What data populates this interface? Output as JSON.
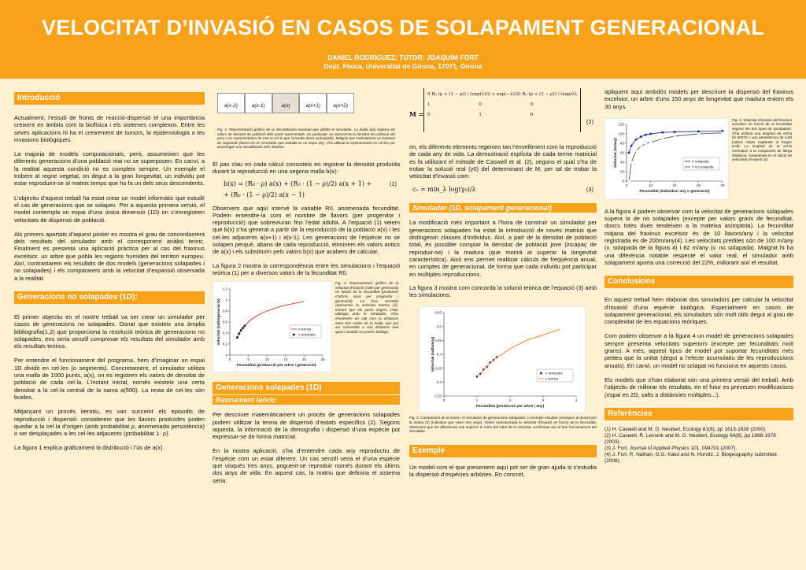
{
  "header": {
    "title": "VELOCITAT D’INVASIÓ EN CASOS DE SOLAPAMENT GENERACIONAL",
    "authors": "DANIEL RODRÍGUEZ; TUTOR: JOAQUIM FORT",
    "affiliation": "Dept. Física, Universitat de Girona, 17071, Girona"
  },
  "col1": {
    "intro_title": "Introducció",
    "intro_p1": "Actualment, l’estudi de fronts de reacció-dispersió té una importància creixent en àmbits com la biofísica i els sistemes complexos. Entre les seves aplicacions hi ha el creixement de tumors, la epidemiologia o les invasions biològiques.",
    "intro_p2": "La majoria de models computacionals, però, assumeixen que les diferents generacions d’una població mai no se superposen. En canvi, a la realitat aquesta condició no es compleix sempre. Un exemple el trobem al regne vegetal, on degut a la gran longevitat, un individu pot estar reproduint-se al mateix temps que ho fa un dels seus descendents.",
    "intro_p3": "L’objectiu d’aquest treball ha estat crear un model informàtic que estudiï el cas de generacions que se solapen. Per a aquesta primera versió, el model contempla un espai d’una única dimensió (1D) on s’enregistren velocitats de dispersió de població.",
    "intro_p4": "Als primers apartats d’aquest pòster es mostra el grau de concordament dels resultats del simulador amb el corresponent anàlisi teòric. Finalment es presenta una aplicació pràctica per al cas del fraxinus excelsior, un arbre que pobla les regions humides del territori europeu. Així, contrastarem els resultats de dos models (generacions solapades i no solapades) i els compararem amb la velocitat d’expansió observada a la realitat.",
    "nonoverlap_title": "Generacions no solapades (1D):",
    "no_p1": "El primer objectiu en el nostre treball va ser crear un simulador per casos de generacions no solapades. Donat que existeix una àmplia bibliografia(1,2) que proporciona la resolució teòrica de generacions no solapades, ens seria senzill comprovar els resultats del simulador amb els resultats teòrics.",
    "no_p2": "Per entendre el funcionament del programa, hem d’imaginar un espai 1D dividit en cel·les (o segments). Concretament, el simulador utilitza una malla de 1000 punts, a(x), on es registren els valors de densitat de població de cada cel·la. L’instant inicial, només existeix una certa densitat a la cel·la central de la xarxa a(500). La resta de cel·les són buides.",
    "no_p3": "Mitjançant un procés iteratiu, es van succeint els episodis de reproducció i dispersió: considerem que les llavors produïdes poden quedar a la cel·la d’origen (amb probabilitat ρ, anomenada persistència) o ser desplaçades a les cel·les adjacents (probabilitat 1- ρ).",
    "no_p4": "La figura 1 explica gràficament la distribució i l’ús de a(x)."
  },
  "col2": {
    "lattice_labels": [
      "a(x-2)",
      "a(x-1)",
      "a(x)",
      "a(x+1)",
      "a(x+2)"
    ],
    "fig1_caption": "Fig. 1: Representació gràfica de la discretització espacial que utilitza el simulador. La malla a(x) registra els valors de densitat de població dels punts representats. En particular, es representa la densitat de població del punt x és representativa de tota la cel·la que l’envolta (àrea ombrejada). Malgrat que estrictament es tractaria de segments (doncs és un simulador que treballa en un espai 1D), s’ha utilitzat la representació en cel·les per aconseguir una visualització més intuïtiva.",
    "p_eq1_intro": "El pas clau en cada càlcul consisteix en registrar la densitat produïda durant la reproducció en una segona malla b(x):",
    "eq1_line1": "b(x) = (R₀ · ρ) a(x) + (R₀ · (1 − ρ)/2) a(x + 1) +",
    "eq1_line2": "+ (R₀ · (1 − ρ)/2) a(x − 1)",
    "eq1_num": "(1)",
    "p_eq1_after": "Observem que aquí intervé la variable R0, anomenada fecunditat. Podem entendre-la com el nombre de llavors (per progenitor i reproducció) que sobreviuran fins l’edat adulta. A l’equació (1) veiem que b(x) s’ha generat a partir de la reproducció de la població a(x) i les cel·les adjacents a(x+1) i a(x-1). Les generacions de l’espècie no se solapen perquè, abans de cada reproducció, eliminem els valors antics de a(x) i els substituïm pels valors b(x) que acabem de calcular.",
    "p_fig2_intro": "La figura 2 mostra la correspondència entre les simulacions i l’equació teòrica (1) per a diversos valors de la fecunditat R0.",
    "fig2_caption": "Fig. 2: Representació gràfica de la velocitat d’invasió (salts per generació) en funció de la fecunditat (producció d’arbres nous per progenitor i generació). La línia vermella representa la velocitat teòrica (2), mentre que els punts negres s’han obtingut amb el simulador. S’ha d’entendre un salt com la distància entre dos nodes de la malla, que pot ser convertida a una distància real quan s’analitzi un procés biològic.",
    "overlap_title": "Generacions solapades (1D)",
    "theory_sub": "Raonament teòric",
    "ov_p1": "Per descriure matemàticament un procés de generacions solapades podem utilitzar la teoria de dispersió d’estats específics (2). Segons aquesta, la informació de la demografia i dispersió d’una espècie pot expressar-se de forma matricial.",
    "ov_p2": "En la nostra aplicació, s’ha d’entendre cada any reproductiu de l’espècie com un estat diferent. Un cas senzill seria el d’una espècie que visqués tres anys, poguent-se reproduir només durant els últims dos anys de vida. En aquest cas, la matriu que definiria el sistema seria:"
  },
  "fig2": {
    "xlabel": "Fecunditat (producció per arbre i generació)",
    "ylabel": "Velocitat (salts/generació)",
    "legend": [
      "v teòrica",
      "v simulador"
    ],
    "yticks": [
      "0",
      "0,2",
      "0,4",
      "0,6",
      "0,8",
      "1",
      "1,2"
    ],
    "xticks": [
      "0",
      "5",
      "10",
      "15",
      "20",
      "25"
    ]
  },
  "col3": {
    "matrix_row1": "0   R₀ (ρ + (1 − ρ)) / (exp(λ)/2 + exp(−λ)/2)     R₀ (ρ + (1 − ρ)) / (exp(λ)/2 + exp(−λ)/2)",
    "matrix_row2": "1   0   0",
    "matrix_row3": "0   1   0",
    "matrix_label": "M =",
    "eq2_num": "(2)",
    "p_after_matrix": "on, els diferents elements regeixen tan l’envelliment com la reproducció de cada any de vida. La demostració explícita de cada terme matricial es fa utilitzant el mètode de Caswell et al. (2), segons el qual s’ha de trobar la solució real (γ0) del determinant de M, per tal de trobar la velocitat d’invasió com:",
    "eq3": "cᵥ = min_λ log(γ₀)/λ",
    "eq3_num": "(3)",
    "sim_sub": "Simulador (1D, solapament generacional)",
    "sim_p1": "La modificació més important a l’hora de construir un simulador per generacions solapades ha estat la introducció de noves matrius que distingeixin classes d’individus. Així, a part de la densitat de població total, és possible comptar la densitat de població jove (incapaç de reproduir-se) i la madura (que morirà al superar la longevitat característica). Això ens permet realitzar càlculs de freqüència anual, en comptes de generacional, de forma que cada individu pot participar en múltiples reproduccions.",
    "sim_p2": "La figura 3 mostra com concorda la solució teòrica de l’equació (3) amb les simulacions.",
    "fig3_caption": "Fig. 3: Comparació de la teoria i el simulador de generacions solapades. L’exemple estudiat correspon al descrit per la matriu (2) (individus que viuen tres anys). Veiem representada la velocitat d’invasió en funció de la fecunditat. Observem que les diferències mai superen el 0.5% del valor de la velocitat, confirmant així el bon funcionament del simulador.",
    "example_title": "Exemple",
    "ex_p1": "Un model com el que presentem aquí pot ser de gran ajuda si s’estudia la dispersió d’espècies arbòries. En concret,"
  },
  "fig3": {
    "xlabel": "Fecunditat (producció per arbre i any)",
    "ylabel": "Velocitat (salts/any)",
    "legend": [
      "v simulador",
      "v teòrica"
    ],
    "yticks": [
      "0,25",
      "0,3",
      "0,35",
      "0,4",
      "0,45",
      "0,5",
      "0,55"
    ],
    "xticks": [
      "0",
      "1",
      "2",
      "3",
      "4"
    ]
  },
  "col4": {
    "p_top": "apliquem aquí ambdós models per descriure la dispersió del fraxinus excelsior, un arbre d’uns 150 anys de longevitat que madura entorn els 30 anys.",
    "fig4_caption": "Fig. 4: Velocitat d’invasió del fraxinus excelsior en funció de la fecunditat segons els dos tipus de simuladors. S’ha utilitzat una longitud de cel·la de 3067m i una persistència de 0,93 (valors mitjos registrats al Regne Unit). La longitud de la cel·la correspon a la component de llarga distància, fonamental en el càlcul de velocitats d’invasió (3).",
    "p_fig4": "A la figura 4 podem observar com la velocitat de generacions solapades supera la de no solapades (excepte per valors grans de fecunditat, doncs totes dues tendeixen a la mateixa asímptota). La fecunditat mitjana del fraxinus excelsior és de 10 llavors/any i la velocitat registrada és de 200m/any(4). Les velocitats predites són de 100 m/any (v. solapada de la figura 4) i 82 m/any (v. no solapada). Malgrat hi ha una diferència notable respecte el valor real; el simulador amb solapament aporta una correcció del 22%, millorant així el resultat.",
    "concl_title": "Conclusions",
    "concl_p1": "En aquest treball hem elaborat dos simuladors per calcular la velocitat d’invasió d’una espècie biològica. Especialment en casos de solapament generacional, els simuladors són molt útils degut al grau de complexitat de les equacions teòriques.",
    "concl_p2": "Com podem observar a la figura 4 un model de generacions solapades sempre presenta velocitats superiors (excepte per fecunditats molt grans). A més, aquest tipus de model pot suportar fecunditats més petites que la unitat (degut a l’efecte acumulatiu de les reproduccions anuals). En canvi, un model no solapat no funciona en aquests casos.",
    "concl_p3": "Els models que s’han elaborat són una primera versió del treball. Amb l’objectiu de millorar els resultats, en el futur es preveuen modificacions (espai en 2D, salts a distàncies múltiples...).",
    "refs_title": "Referències",
    "refs": [
      "(1) H. Caswell and M. G. Neubert, Ecology 81(6), pp 1613-1628 (2000).",
      "(2) H. Caswell, R. Lensink and M. G. Neubert, Ecology 84(8), pp 1968-1978 (2003).",
      "(3) J. Fort, Journal of Applied Physics 101, 094701 (2007).",
      "(4) J. Fort, R. Nathan, G.G. Katul and N. Horvitz, J. Biogeography submitted (2008)."
    ]
  },
  "fig4": {
    "xlabel": "Fecunditat (individus/ any o generació)",
    "ylabel": "Velocitat (m/any)",
    "legend": [
      "V solapada",
      "V no solapada"
    ],
    "yticks": [
      "0",
      "20",
      "40",
      "60",
      "80",
      "100",
      "120"
    ],
    "xticks": [
      "0",
      "10",
      "20",
      "30",
      "40"
    ]
  },
  "chart_data": [
    {
      "type": "scatter",
      "xlabel": "Fecunditat (producció per arbre i generació)",
      "ylabel": "Velocitat (salts/generació)",
      "ylim": [
        0,
        1.2
      ],
      "xlim": [
        0,
        25
      ],
      "series": [
        {
          "name": "v teòrica",
          "x": [
            2,
            3,
            4,
            5,
            6,
            8,
            10,
            13,
            16,
            20
          ],
          "y": [
            0.32,
            0.45,
            0.53,
            0.6,
            0.66,
            0.74,
            0.8,
            0.87,
            0.92,
            0.97
          ]
        },
        {
          "name": "v simulador",
          "x": [
            2,
            2.5,
            3,
            3.5,
            4
          ],
          "y": [
            0.32,
            0.39,
            0.45,
            0.49,
            0.53
          ]
        }
      ]
    },
    {
      "type": "scatter",
      "xlabel": "Fecunditat (producció per arbre i any)",
      "ylabel": "Velocitat (salts/any)",
      "ylim": [
        0.25,
        0.55
      ],
      "xlim": [
        0,
        4
      ],
      "series": [
        {
          "name": "v simulador",
          "x": [
            1.0,
            1.1,
            1.2,
            1.3,
            1.4,
            1.5,
            1.6
          ],
          "y": [
            0.32,
            0.33,
            0.345,
            0.355,
            0.37,
            0.38,
            0.39
          ]
        },
        {
          "name": "v teòrica",
          "x": [
            1.0,
            1.5,
            2,
            2.5,
            3,
            3.5
          ],
          "y": [
            0.32,
            0.38,
            0.42,
            0.45,
            0.47,
            0.49
          ]
        }
      ]
    },
    {
      "type": "scatter",
      "xlabel": "Fecunditat (individus/ any o generació)",
      "ylabel": "Velocitat (m/any)",
      "ylim": [
        0,
        120
      ],
      "xlim": [
        0,
        40
      ],
      "series": [
        {
          "name": "V solapada",
          "x": [
            1,
            2,
            4,
            6,
            8,
            10,
            15,
            20,
            30,
            40
          ],
          "y": [
            60,
            75,
            88,
            94,
            98,
            100,
            103,
            104,
            105,
            106
          ]
        },
        {
          "name": "V no solapada",
          "x": [
            1,
            2,
            4,
            6,
            8,
            10,
            15,
            20,
            30,
            40
          ],
          "y": [
            0,
            40,
            64,
            74,
            79,
            82,
            90,
            95,
            100,
            102
          ]
        }
      ]
    }
  ]
}
